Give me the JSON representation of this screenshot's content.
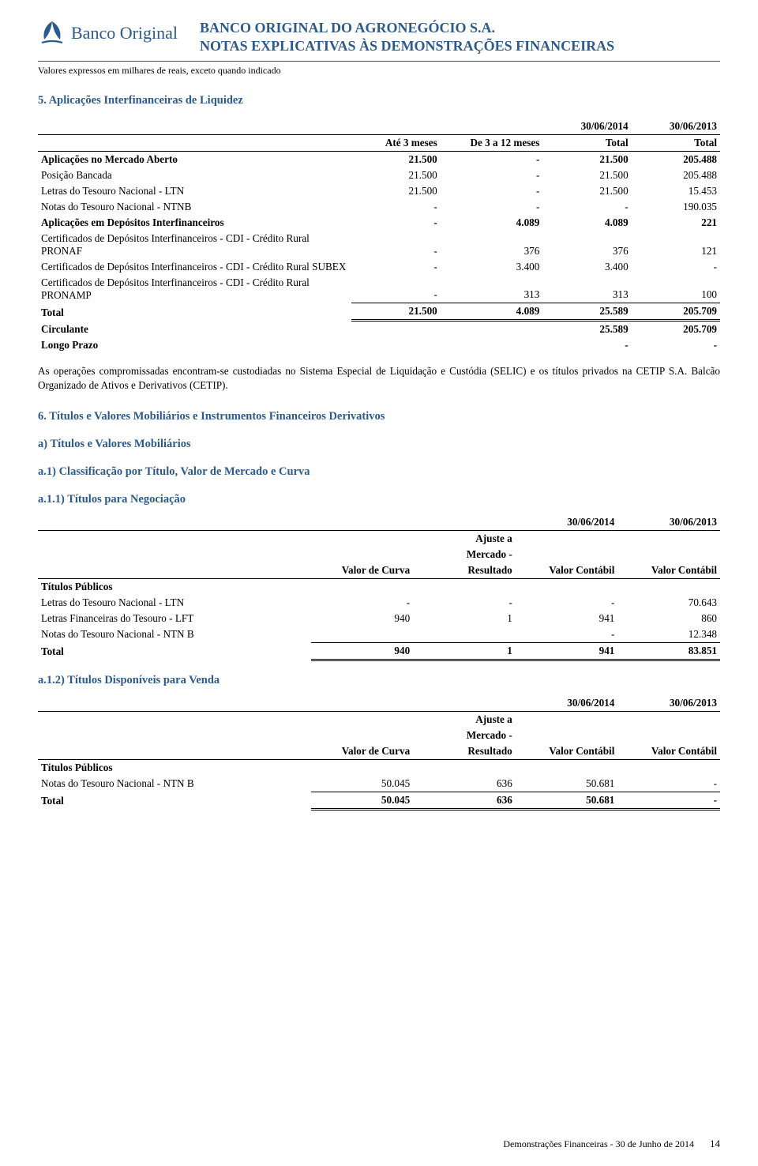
{
  "header": {
    "bank_logo_text": "Banco Original",
    "title1": "BANCO ORIGINAL DO AGRONEGÓCIO S.A.",
    "title2": "NOTAS EXPLICATIVAS ÀS DEMONSTRAÇÕES FINANCEIRAS",
    "subtitle": "Valores expressos em milhares de reais, exceto quando indicado"
  },
  "section5": {
    "heading": "5. Aplicações Interfinanceiras de Liquidez",
    "periods": {
      "left": "30/06/2014",
      "right": "30/06/2013"
    },
    "columns": {
      "c1": "",
      "c2": "Até 3 meses",
      "c3": "De 3 a 12 meses",
      "c4": "Total",
      "c5": "Total"
    },
    "rows": [
      {
        "bold": true,
        "label": "Aplicações no Mercado Aberto",
        "c2": "21.500",
        "c3": "-",
        "c4": "21.500",
        "c5": "205.488"
      },
      {
        "bold": false,
        "label": "Posição Bancada",
        "c2": "21.500",
        "c3": "-",
        "c4": "21.500",
        "c5": "205.488"
      },
      {
        "bold": false,
        "label": "Letras do Tesouro Nacional - LTN",
        "c2": "21.500",
        "c3": "-",
        "c4": "21.500",
        "c5": "15.453"
      },
      {
        "bold": false,
        "label": "Notas do Tesouro Nacional - NTNB",
        "c2": "-",
        "c3": "-",
        "c4": "-",
        "c5": "190.035"
      },
      {
        "bold": true,
        "label": "Aplicações em Depósitos Interfinanceiros",
        "c2": "-",
        "c3": "4.089",
        "c4": "4.089",
        "c5": "221"
      },
      {
        "bold": false,
        "label": "Certificados de Depósitos Interfinanceiros - CDI - Crédito Rural PRONAF",
        "c2": "-",
        "c3": "376",
        "c4": "376",
        "c5": "121"
      },
      {
        "bold": false,
        "label": "Certificados de Depósitos Interfinanceiros - CDI - Crédito Rural SUBEX",
        "c2": "-",
        "c3": "3.400",
        "c4": "3.400",
        "c5": "-"
      },
      {
        "bold": false,
        "uline": true,
        "label": "Certificados de Depósitos Interfinanceiros - CDI - Crédito Rural PRONAMP",
        "c2": "-",
        "c3": "313",
        "c4": "313",
        "c5": "100"
      }
    ],
    "total": {
      "label": "Total",
      "c2": "21.500",
      "c3": "4.089",
      "c4": "25.589",
      "c5": "205.709"
    },
    "after": [
      {
        "bold": true,
        "label": "Circulante",
        "c2": "",
        "c3": "",
        "c4": "25.589",
        "c5": "205.709"
      },
      {
        "bold": true,
        "label": "Longo Prazo",
        "c2": "",
        "c3": "",
        "c4": "-",
        "c5": "-"
      }
    ],
    "body_text": "As operações compromissadas encontram-se custodiadas no Sistema Especial de Liquidação e Custódia (SELIC) e os títulos privados na CETIP S.A. Balcão Organizado de Ativos e Derivativos (CETIP)."
  },
  "section6": {
    "heading": "6. Títulos e Valores Mobiliários e Instrumentos Financeiros Derivativos",
    "sub_a": "a) Títulos e Valores Mobiliários",
    "sub_a1": "a.1) Classificação por Título, Valor de Mercado e Curva",
    "sub_a11": "a.1.1) Títulos para Negociação",
    "periods": {
      "left": "30/06/2014",
      "right": "30/06/2013"
    },
    "columns": {
      "c1": "",
      "c2": "Valor de Curva",
      "c3_l1": "Ajuste a",
      "c3_l2": "Mercado -",
      "c3_l3": "Resultado",
      "c4": "Valor Contábil",
      "c5": "Valor Contábil"
    },
    "group_label": "Títulos Públicos",
    "rows": [
      {
        "label": "Letras do Tesouro Nacional - LTN",
        "c2": "-",
        "c3": "-",
        "c4": "-",
        "c5": "70.643"
      },
      {
        "label": "Letras Financeiras do Tesouro - LFT",
        "c2": "940",
        "c3": "1",
        "c4": "941",
        "c5": "860"
      },
      {
        "label": "Notas do Tesouro Nacional - NTN B",
        "c2": "",
        "c3": "",
        "c4": "-",
        "c5": "12.348",
        "uline": true
      }
    ],
    "total": {
      "label": "Total",
      "c2": "940",
      "c3": "1",
      "c4": "941",
      "c5": "83.851"
    },
    "sub_a12": "a.1.2) Títulos Disponíveis para Venda",
    "rows2": [
      {
        "label": "Notas do Tesouro Nacional - NTN B",
        "c2": "50.045",
        "c3": "636",
        "c4": "50.681",
        "c5": "-",
        "uline": true
      }
    ],
    "total2": {
      "label": "Total",
      "c2": "50.045",
      "c3": "636",
      "c4": "50.681",
      "c5": "-"
    }
  },
  "footer": {
    "text": "Demonstrações Financeiras - 30 de Junho de 2014",
    "page": "14"
  },
  "colors": {
    "brand": "#2c5a8c",
    "text": "#000000",
    "rule": "#000000"
  }
}
